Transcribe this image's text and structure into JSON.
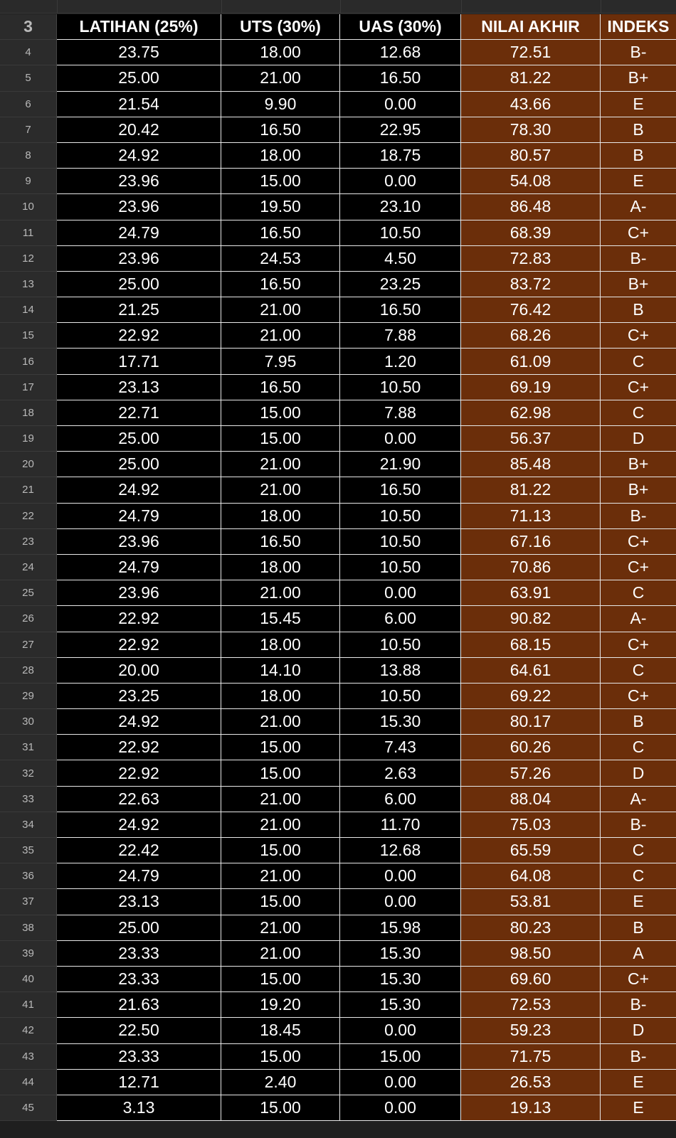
{
  "headers": {
    "latihan": "LATIHAN (25%)",
    "uts": "UTS (30%)",
    "uas": "UAS (30%)",
    "nilai_akhir": "NILAI AKHIR",
    "indeks": "INDEKS"
  },
  "header_row_number": "3",
  "colors": {
    "input_fill": "#000000",
    "result_fill": "#6b2e0a",
    "grid_line": "#e8e8e8",
    "row_header_bg": "#2b2b2b"
  },
  "rows": [
    {
      "n": "4",
      "lat": "23.75",
      "uts": "18.00",
      "uas": "12.68",
      "na": "72.51",
      "idx": "B-"
    },
    {
      "n": "5",
      "lat": "25.00",
      "uts": "21.00",
      "uas": "16.50",
      "na": "81.22",
      "idx": "B+"
    },
    {
      "n": "6",
      "lat": "21.54",
      "uts": "9.90",
      "uas": "0.00",
      "na": "43.66",
      "idx": "E"
    },
    {
      "n": "7",
      "lat": "20.42",
      "uts": "16.50",
      "uas": "22.95",
      "na": "78.30",
      "idx": "B"
    },
    {
      "n": "8",
      "lat": "24.92",
      "uts": "18.00",
      "uas": "18.75",
      "na": "80.57",
      "idx": "B"
    },
    {
      "n": "9",
      "lat": "23.96",
      "uts": "15.00",
      "uas": "0.00",
      "na": "54.08",
      "idx": "E"
    },
    {
      "n": "10",
      "lat": "23.96",
      "uts": "19.50",
      "uas": "23.10",
      "na": "86.48",
      "idx": "A-"
    },
    {
      "n": "11",
      "lat": "24.79",
      "uts": "16.50",
      "uas": "10.50",
      "na": "68.39",
      "idx": "C+"
    },
    {
      "n": "12",
      "lat": "23.96",
      "uts": "24.53",
      "uas": "4.50",
      "na": "72.83",
      "idx": "B-"
    },
    {
      "n": "13",
      "lat": "25.00",
      "uts": "16.50",
      "uas": "23.25",
      "na": "83.72",
      "idx": "B+"
    },
    {
      "n": "14",
      "lat": "21.25",
      "uts": "21.00",
      "uas": "16.50",
      "na": "76.42",
      "idx": "B"
    },
    {
      "n": "15",
      "lat": "22.92",
      "uts": "21.00",
      "uas": "7.88",
      "na": "68.26",
      "idx": "C+"
    },
    {
      "n": "16",
      "lat": "17.71",
      "uts": "7.95",
      "uas": "1.20",
      "na": "61.09",
      "idx": "C"
    },
    {
      "n": "17",
      "lat": "23.13",
      "uts": "16.50",
      "uas": "10.50",
      "na": "69.19",
      "idx": "C+"
    },
    {
      "n": "18",
      "lat": "22.71",
      "uts": "15.00",
      "uas": "7.88",
      "na": "62.98",
      "idx": "C"
    },
    {
      "n": "19",
      "lat": "25.00",
      "uts": "15.00",
      "uas": "0.00",
      "na": "56.37",
      "idx": "D"
    },
    {
      "n": "20",
      "lat": "25.00",
      "uts": "21.00",
      "uas": "21.90",
      "na": "85.48",
      "idx": "B+"
    },
    {
      "n": "21",
      "lat": "24.92",
      "uts": "21.00",
      "uas": "16.50",
      "na": "81.22",
      "idx": "B+"
    },
    {
      "n": "22",
      "lat": "24.79",
      "uts": "18.00",
      "uas": "10.50",
      "na": "71.13",
      "idx": "B-"
    },
    {
      "n": "23",
      "lat": "23.96",
      "uts": "16.50",
      "uas": "10.50",
      "na": "67.16",
      "idx": "C+"
    },
    {
      "n": "24",
      "lat": "24.79",
      "uts": "18.00",
      "uas": "10.50",
      "na": "70.86",
      "idx": "C+"
    },
    {
      "n": "25",
      "lat": "23.96",
      "uts": "21.00",
      "uas": "0.00",
      "na": "63.91",
      "idx": "C"
    },
    {
      "n": "26",
      "lat": "22.92",
      "uts": "15.45",
      "uas": "6.00",
      "na": "90.82",
      "idx": "A-"
    },
    {
      "n": "27",
      "lat": "22.92",
      "uts": "18.00",
      "uas": "10.50",
      "na": "68.15",
      "idx": "C+"
    },
    {
      "n": "28",
      "lat": "20.00",
      "uts": "14.10",
      "uas": "13.88",
      "na": "64.61",
      "idx": "C"
    },
    {
      "n": "29",
      "lat": "23.25",
      "uts": "18.00",
      "uas": "10.50",
      "na": "69.22",
      "idx": "C+"
    },
    {
      "n": "30",
      "lat": "24.92",
      "uts": "21.00",
      "uas": "15.30",
      "na": "80.17",
      "idx": "B"
    },
    {
      "n": "31",
      "lat": "22.92",
      "uts": "15.00",
      "uas": "7.43",
      "na": "60.26",
      "idx": "C"
    },
    {
      "n": "32",
      "lat": "22.92",
      "uts": "15.00",
      "uas": "2.63",
      "na": "57.26",
      "idx": "D"
    },
    {
      "n": "33",
      "lat": "22.63",
      "uts": "21.00",
      "uas": "6.00",
      "na": "88.04",
      "idx": "A-"
    },
    {
      "n": "34",
      "lat": "24.92",
      "uts": "21.00",
      "uas": "11.70",
      "na": "75.03",
      "idx": "B-"
    },
    {
      "n": "35",
      "lat": "22.42",
      "uts": "15.00",
      "uas": "12.68",
      "na": "65.59",
      "idx": "C"
    },
    {
      "n": "36",
      "lat": "24.79",
      "uts": "21.00",
      "uas": "0.00",
      "na": "64.08",
      "idx": "C"
    },
    {
      "n": "37",
      "lat": "23.13",
      "uts": "15.00",
      "uas": "0.00",
      "na": "53.81",
      "idx": "E"
    },
    {
      "n": "38",
      "lat": "25.00",
      "uts": "21.00",
      "uas": "15.98",
      "na": "80.23",
      "idx": "B"
    },
    {
      "n": "39",
      "lat": "23.33",
      "uts": "21.00",
      "uas": "15.30",
      "na": "98.50",
      "idx": "A"
    },
    {
      "n": "40",
      "lat": "23.33",
      "uts": "15.00",
      "uas": "15.30",
      "na": "69.60",
      "idx": "C+"
    },
    {
      "n": "41",
      "lat": "21.63",
      "uts": "19.20",
      "uas": "15.30",
      "na": "72.53",
      "idx": "B-"
    },
    {
      "n": "42",
      "lat": "22.50",
      "uts": "18.45",
      "uas": "0.00",
      "na": "59.23",
      "idx": "D"
    },
    {
      "n": "43",
      "lat": "23.33",
      "uts": "15.00",
      "uas": "15.00",
      "na": "71.75",
      "idx": "B-"
    },
    {
      "n": "44",
      "lat": "12.71",
      "uts": "2.40",
      "uas": "0.00",
      "na": "26.53",
      "idx": "E"
    },
    {
      "n": "45",
      "lat": "3.13",
      "uts": "15.00",
      "uas": "0.00",
      "na": "19.13",
      "idx": "E"
    }
  ]
}
